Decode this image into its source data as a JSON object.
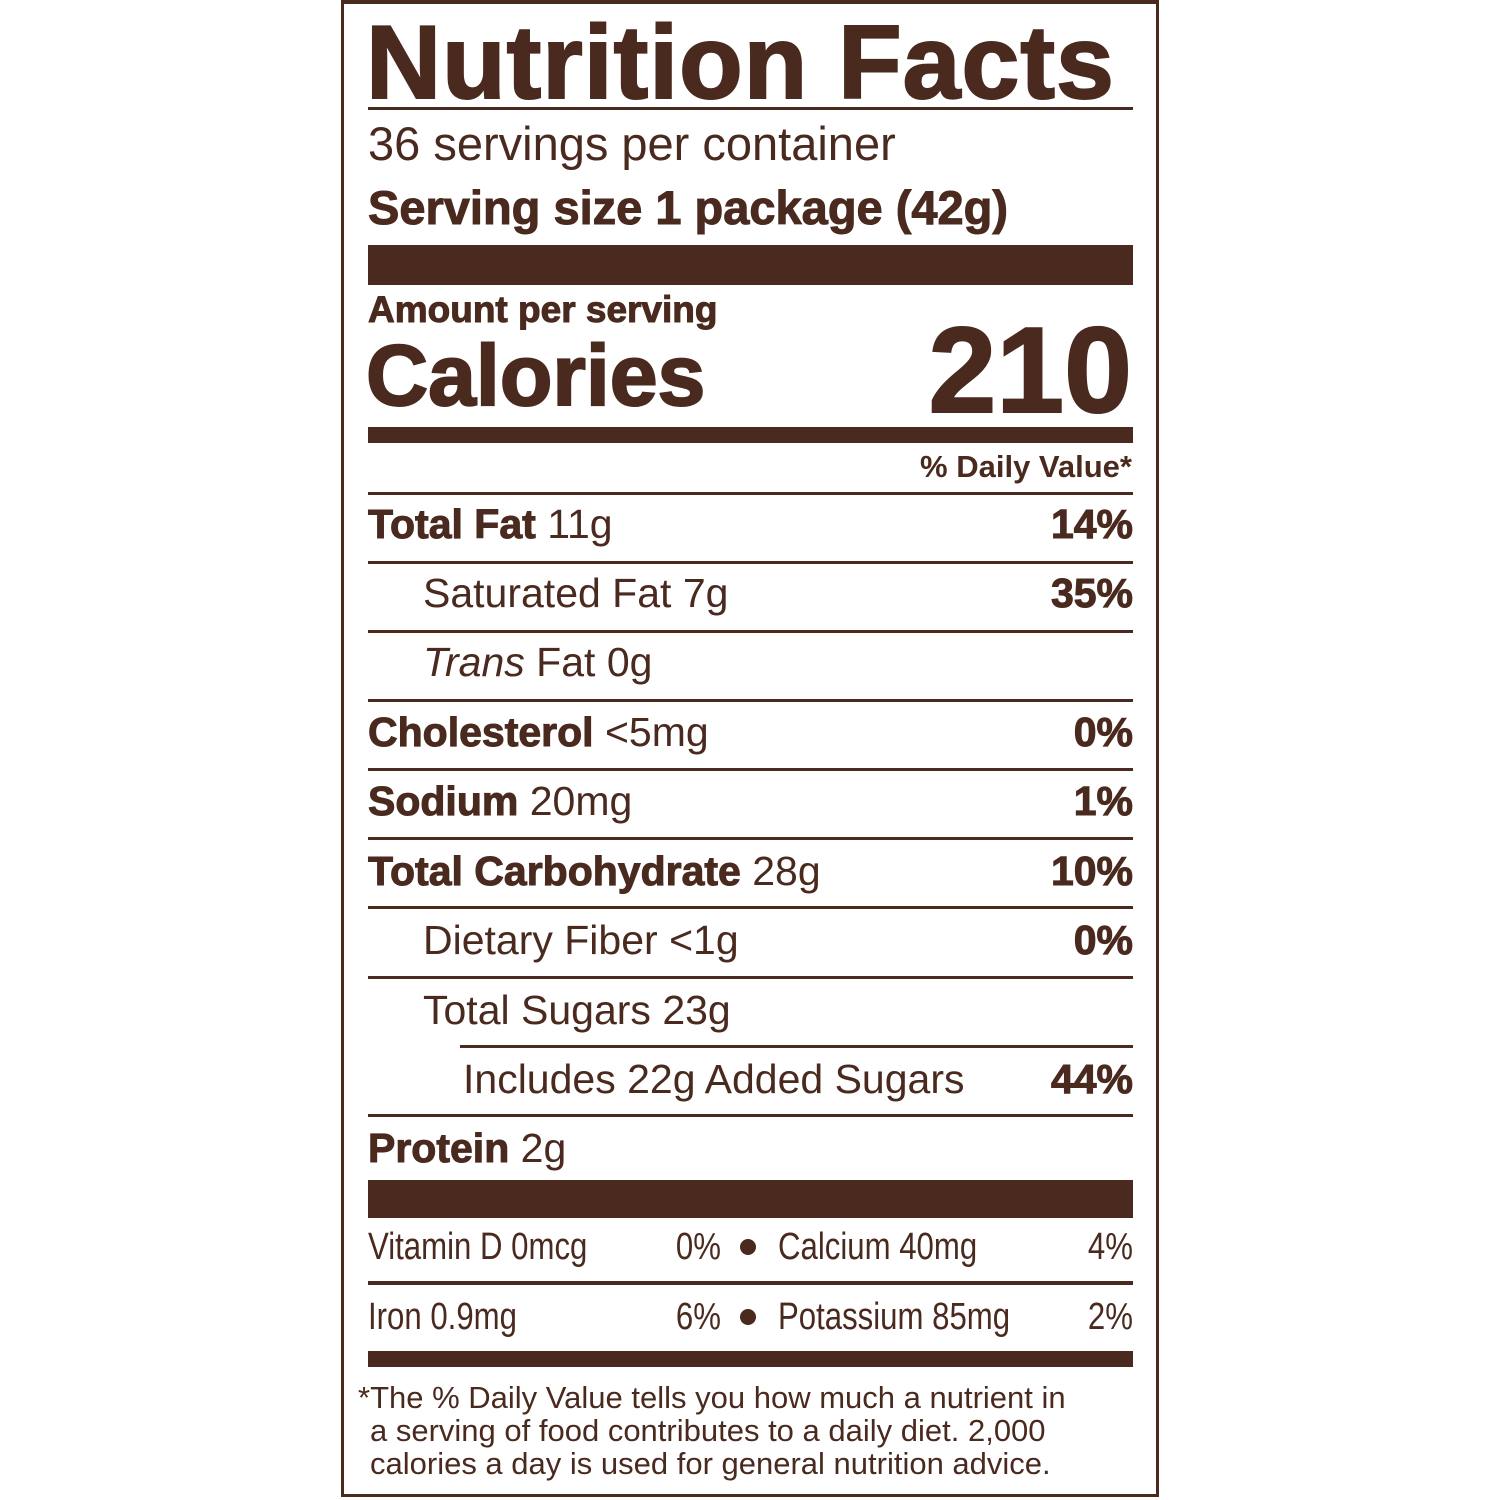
{
  "colors": {
    "ink": "#4a2a1f",
    "background": "#ffffff"
  },
  "title": "Nutrition Facts",
  "servings_per_container": "36 servings per container",
  "serving_size_label": "Serving size",
  "serving_size_value": "1 package (42g)",
  "amount_per_serving": "Amount per serving",
  "calories_label": "Calories",
  "calories_value": "210",
  "daily_value_header": "% Daily Value*",
  "nutrients": [
    {
      "name": "Total Fat",
      "amount": "11g",
      "dv": "14%"
    },
    {
      "name": "Saturated Fat",
      "amount": "7g",
      "dv": "35%"
    },
    {
      "name": "Trans",
      "name_rest": "Fat",
      "amount": "0g",
      "dv": ""
    },
    {
      "name": "Cholesterol",
      "amount": "<5mg",
      "dv": "0%"
    },
    {
      "name": "Sodium",
      "amount": "20mg",
      "dv": "1%"
    },
    {
      "name": "Total Carbohydrate",
      "amount": "28g",
      "dv": "10%"
    },
    {
      "name": "Dietary Fiber",
      "amount": "<1g",
      "dv": "0%"
    },
    {
      "name": "Total Sugars",
      "amount": "23g",
      "dv": ""
    },
    {
      "name": "Includes 22g Added Sugars",
      "amount": "",
      "dv": "44%"
    },
    {
      "name": "Protein",
      "amount": "2g",
      "dv": ""
    }
  ],
  "micronutrients": [
    [
      {
        "label": "Vitamin D 0mcg",
        "dv": "0%"
      },
      {
        "label": "Calcium 40mg",
        "dv": "4%"
      }
    ],
    [
      {
        "label": "Iron 0.9mg",
        "dv": "6%"
      },
      {
        "label": "Potassium 85mg",
        "dv": "2%"
      }
    ]
  ],
  "footnote": [
    "*The % Daily Value tells you how much a nutrient in",
    "a serving of food contributes to a daily diet. 2,000",
    "calories a day is used for general nutrition advice."
  ]
}
